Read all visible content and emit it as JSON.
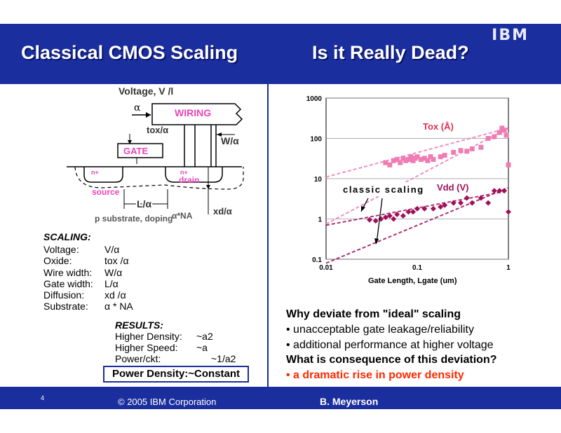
{
  "slide": {
    "left_title": "Classical CMOS Scaling",
    "right_title": "Is it Really Dead?",
    "logo_text": "IBM",
    "page_number": "4",
    "copyright": "© 2005 IBM Corporation",
    "presenter": "B. Meyerson"
  },
  "diagram": {
    "voltage": "Voltage, V /l",
    "alpha": "α",
    "wiring": "WIRING",
    "tox": "tox/α",
    "w": "W/α",
    "gate": "GATE",
    "n_left": "n+",
    "n_right": "n+",
    "drain": "drain",
    "source": "source",
    "l": "L/α",
    "xd": "xd/α",
    "substrate": "p substrate, doping",
    "na": "α*NA"
  },
  "scaling": {
    "heading": "SCALING:",
    "rows": [
      {
        "label": "Voltage:",
        "value": "V/α"
      },
      {
        "label": "Oxide:",
        "value": "tox /α"
      },
      {
        "label": "Wire width:",
        "value": "W/α"
      },
      {
        "label": "Gate width:",
        "value": "L/α"
      },
      {
        "label": "Diffusion:",
        "value": "xd /α"
      },
      {
        "label": "Substrate:",
        "value": "α * NA"
      }
    ]
  },
  "results": {
    "heading": "RESULTS:",
    "rows": [
      {
        "label": "Higher Density:",
        "value": "~a2"
      },
      {
        "label": "Higher Speed:",
        "value": "~a"
      },
      {
        "label": "Power/ckt:",
        "value": "~1/a2"
      }
    ],
    "power_density": "Power Density:~Constant"
  },
  "chart_data": {
    "type": "scatter",
    "xlabel": "Gate Length, Lgate (um)",
    "ylabel": "",
    "x_scale": "log",
    "y_scale": "log",
    "xlim": [
      0.01,
      1
    ],
    "ylim": [
      0.1,
      1000
    ],
    "x_ticks": [
      "0.01",
      "0.1",
      "1"
    ],
    "y_ticks": [
      "0.1",
      "1",
      "10",
      "100",
      "1000"
    ],
    "grid": "horizontal",
    "series": [
      {
        "name": "Tox (Å)",
        "color": "#f07cb4",
        "marker": "square",
        "points": [
          [
            0.045,
            25
          ],
          [
            0.05,
            22
          ],
          [
            0.055,
            28
          ],
          [
            0.06,
            30
          ],
          [
            0.065,
            25
          ],
          [
            0.07,
            32
          ],
          [
            0.075,
            28
          ],
          [
            0.08,
            30
          ],
          [
            0.085,
            35
          ],
          [
            0.09,
            28
          ],
          [
            0.095,
            32
          ],
          [
            0.1,
            35
          ],
          [
            0.11,
            30
          ],
          [
            0.12,
            32
          ],
          [
            0.13,
            28
          ],
          [
            0.14,
            35
          ],
          [
            0.15,
            30
          ],
          [
            0.18,
            35
          ],
          [
            0.2,
            38
          ],
          [
            0.25,
            45
          ],
          [
            0.3,
            50
          ],
          [
            0.35,
            48
          ],
          [
            0.4,
            55
          ],
          [
            0.5,
            60
          ],
          [
            0.6,
            100
          ],
          [
            0.7,
            110
          ],
          [
            0.8,
            140
          ],
          [
            0.85,
            180
          ],
          [
            0.9,
            160
          ],
          [
            0.95,
            120
          ],
          [
            1.0,
            22
          ]
        ]
      },
      {
        "name": "Vdd (V)",
        "color": "#a0105a",
        "marker": "diamond",
        "points": [
          [
            0.03,
            0.95
          ],
          [
            0.035,
            0.9
          ],
          [
            0.04,
            1.0
          ],
          [
            0.045,
            1.1
          ],
          [
            0.05,
            1.2
          ],
          [
            0.055,
            1.0
          ],
          [
            0.06,
            1.3
          ],
          [
            0.07,
            1.2
          ],
          [
            0.08,
            1.5
          ],
          [
            0.09,
            1.5
          ],
          [
            0.1,
            1.8
          ],
          [
            0.12,
            1.8
          ],
          [
            0.15,
            1.8
          ],
          [
            0.18,
            2.0
          ],
          [
            0.2,
            2.2
          ],
          [
            0.25,
            2.5
          ],
          [
            0.3,
            2.5
          ],
          [
            0.35,
            3.3
          ],
          [
            0.4,
            2.5
          ],
          [
            0.5,
            3.3
          ],
          [
            0.6,
            2.5
          ],
          [
            0.7,
            5.0
          ],
          [
            0.8,
            5.0
          ],
          [
            0.9,
            5.0
          ],
          [
            1.0,
            1.5
          ]
        ]
      }
    ],
    "trend_lines": [
      {
        "series": "Tox (Å)",
        "style": "dashed",
        "from": [
          0.01,
          11
        ],
        "to": [
          1,
          180
        ]
      },
      {
        "series": "Tox (Å)",
        "style": "dashed",
        "from": [
          0.01,
          0.75
        ],
        "to": [
          1,
          180
        ]
      },
      {
        "series": "Vdd (V)",
        "style": "dashed",
        "from": [
          0.01,
          0.7
        ],
        "to": [
          1,
          5
        ]
      },
      {
        "series": "Vdd (V)",
        "style": "dashed",
        "from": [
          0.01,
          0.08
        ],
        "to": [
          1,
          6
        ]
      }
    ],
    "annotations": [
      "classic scaling"
    ]
  },
  "bullets": {
    "q1": "Why deviate from \"ideal\" scaling",
    "b1": "• unacceptable gate leakage/reliability",
    "b2": "• additional performance at higher voltage",
    "q2": "What is consequence of this deviation?",
    "b3": "• a dramatic rise in power density"
  }
}
